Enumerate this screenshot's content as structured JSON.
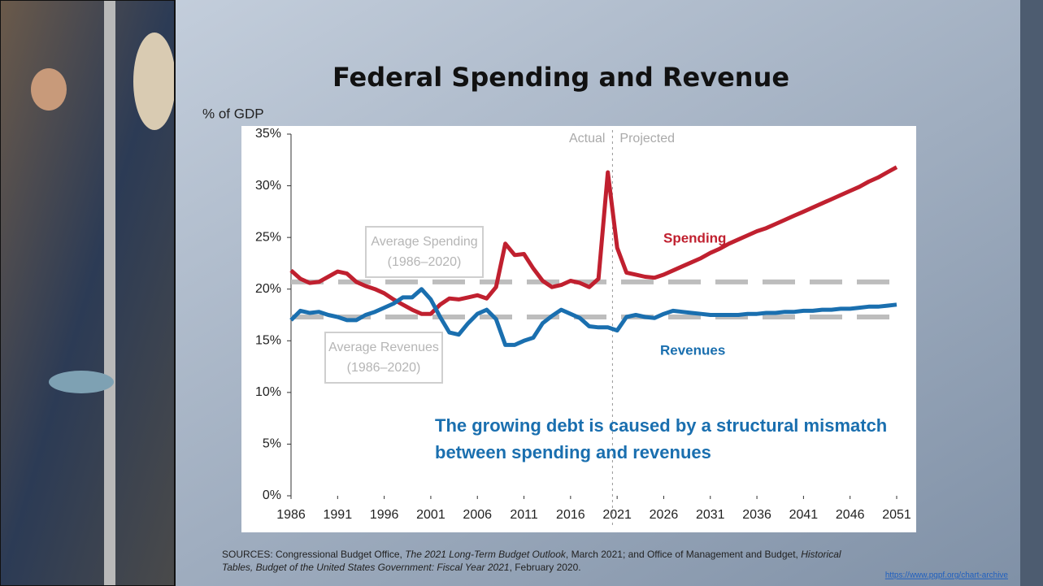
{
  "chart_data": {
    "type": "line",
    "title": "Federal Spending and Revenue",
    "y_label": "% of GDP",
    "x": [
      1986,
      1987,
      1988,
      1989,
      1990,
      1991,
      1992,
      1993,
      1994,
      1995,
      1996,
      1997,
      1998,
      1999,
      2000,
      2001,
      2002,
      2003,
      2004,
      2005,
      2006,
      2007,
      2008,
      2009,
      2010,
      2011,
      2012,
      2013,
      2014,
      2015,
      2016,
      2017,
      2018,
      2019,
      2020,
      2021,
      2022,
      2023,
      2024,
      2025,
      2026,
      2027,
      2028,
      2029,
      2030,
      2031,
      2032,
      2033,
      2034,
      2035,
      2036,
      2037,
      2038,
      2039,
      2040,
      2041,
      2042,
      2043,
      2044,
      2045,
      2046,
      2047,
      2048,
      2049,
      2050,
      2051
    ],
    "series": [
      {
        "name": "Spending",
        "color": "#c0202f",
        "values": [
          21.8,
          21.0,
          20.6,
          20.7,
          21.2,
          21.7,
          21.5,
          20.7,
          20.3,
          20.0,
          19.6,
          19.0,
          18.5,
          18.0,
          17.6,
          17.6,
          18.5,
          19.1,
          19.0,
          19.2,
          19.4,
          19.1,
          20.2,
          24.4,
          23.3,
          23.4,
          22.0,
          20.8,
          20.2,
          20.4,
          20.8,
          20.6,
          20.2,
          21.0,
          31.3,
          24.0,
          21.6,
          21.4,
          21.2,
          21.1,
          21.4,
          21.8,
          22.2,
          22.6,
          23.0,
          23.5,
          23.9,
          24.4,
          24.8,
          25.2,
          25.6,
          25.9,
          26.3,
          26.7,
          27.1,
          27.5,
          27.9,
          28.3,
          28.7,
          29.1,
          29.5,
          29.9,
          30.4,
          30.8,
          31.3,
          31.8
        ]
      },
      {
        "name": "Revenues",
        "color": "#1a6faf",
        "values": [
          17.0,
          17.9,
          17.7,
          17.8,
          17.5,
          17.3,
          17.0,
          17.0,
          17.5,
          17.8,
          18.2,
          18.6,
          19.2,
          19.2,
          20.0,
          19.0,
          17.3,
          15.8,
          15.6,
          16.7,
          17.6,
          18.0,
          17.1,
          14.6,
          14.6,
          15.0,
          15.3,
          16.7,
          17.4,
          18.0,
          17.6,
          17.2,
          16.4,
          16.3,
          16.3,
          16.0,
          17.3,
          17.5,
          17.3,
          17.2,
          17.6,
          17.9,
          17.8,
          17.7,
          17.6,
          17.5,
          17.5,
          17.5,
          17.5,
          17.6,
          17.6,
          17.7,
          17.7,
          17.8,
          17.8,
          17.9,
          17.9,
          18.0,
          18.0,
          18.1,
          18.1,
          18.2,
          18.3,
          18.3,
          18.4,
          18.5
        ]
      }
    ],
    "reference_lines": [
      {
        "value": 20.7,
        "color": "#bdbdbd",
        "label": [
          "Average Spending",
          "(1986–2020)"
        ]
      },
      {
        "value": 17.3,
        "color": "#bdbdbd",
        "label": [
          "Average Revenues",
          "(1986–2020)"
        ]
      }
    ],
    "divider": {
      "x": 2020.5,
      "left_label": "Actual",
      "right_label": "Projected"
    },
    "note": [
      "The growing debt is caused by a structural mismatch",
      "between spending and revenues"
    ],
    "xlim": [
      1986,
      2051
    ],
    "xticks": [
      1986,
      1991,
      1996,
      2001,
      2006,
      2011,
      2016,
      2021,
      2026,
      2031,
      2036,
      2041,
      2046,
      2051
    ],
    "ylim": [
      0,
      35
    ],
    "yticks": [
      {
        "value": 0,
        "label": "0%"
      },
      {
        "value": 5,
        "label": "5%"
      },
      {
        "value": 10,
        "label": "10%"
      },
      {
        "value": 15,
        "label": "15%"
      },
      {
        "value": 20,
        "label": "20%"
      },
      {
        "value": 25,
        "label": "25%"
      },
      {
        "value": 30,
        "label": "30%"
      },
      {
        "value": 35,
        "label": "35%"
      }
    ],
    "grid": false
  },
  "sources": [
    [
      {
        "text": "SOURCES: Congressional Budget Office, "
      },
      {
        "text": "The 2021 Long-Term Budget Outlook",
        "italic": true
      },
      {
        "text": ", March 2021; and Office of Management and Budget, "
      },
      {
        "text": "Historical",
        "italic": true
      }
    ],
    [
      {
        "text": "Tables, Budget of the United States Government: Fiscal Year 2021",
        "italic": true
      },
      {
        "text": ", February 2020."
      }
    ]
  ],
  "url": "https://www.pgpf.org/chart-archive"
}
